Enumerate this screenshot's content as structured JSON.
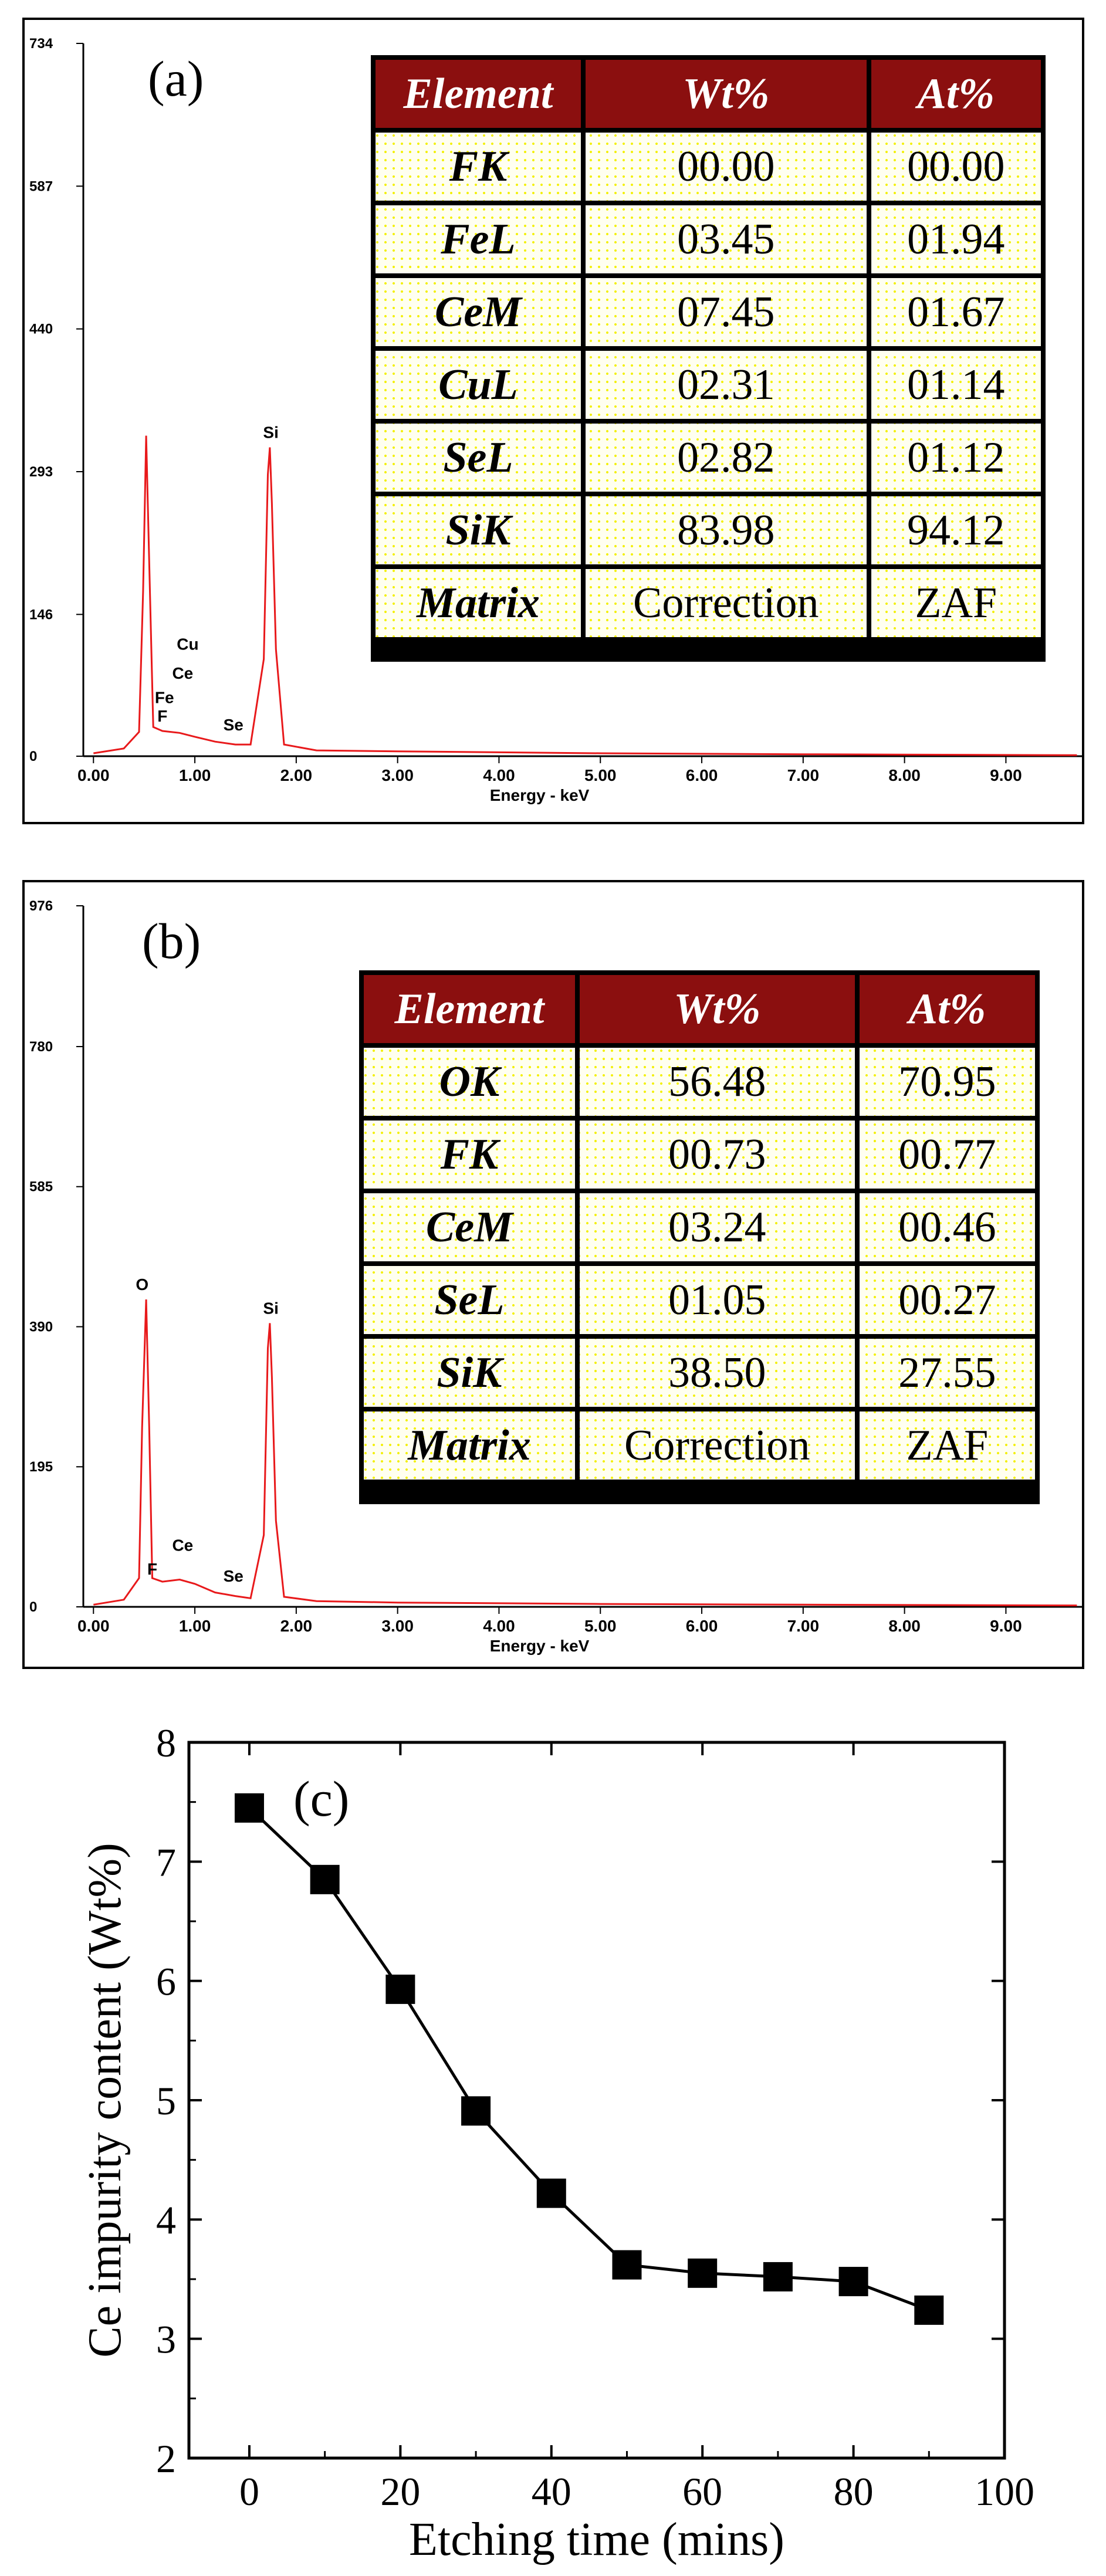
{
  "colors": {
    "spectrum": "#e8191b",
    "header_bg": "#8b0f0f",
    "table_dots": "#f3f000",
    "ce_line": "#000000"
  },
  "panels": [
    {
      "label": "(a)",
      "y_ticks": [
        "734",
        "587",
        "440",
        "293",
        "146",
        "0"
      ],
      "x_ticks": [
        "0.00",
        "1.00",
        "2.00",
        "3.00",
        "4.00",
        "5.00",
        "6.00",
        "7.00",
        "8.00",
        "9.00"
      ],
      "xlabel": "Energy - keV",
      "peak_labels": [
        "Si",
        "Cu",
        "Ce",
        "Fe",
        "F",
        "Se"
      ],
      "table": {
        "headers": [
          "Element",
          "Wt%",
          "At%"
        ],
        "rows": [
          [
            "FK",
            "00.00",
            "00.00"
          ],
          [
            "FeL",
            "03.45",
            "01.94"
          ],
          [
            "CeM",
            "07.45",
            "01.67"
          ],
          [
            "CuL",
            "02.31",
            "01.14"
          ],
          [
            "SeL",
            "02.82",
            "01.12"
          ],
          [
            "SiK",
            "83.98",
            "94.12"
          ],
          [
            "Matrix",
            "Correction",
            "ZAF"
          ]
        ]
      }
    },
    {
      "label": "(b)",
      "y_ticks": [
        "976",
        "780",
        "585",
        "390",
        "195",
        "0"
      ],
      "x_ticks": [
        "0.00",
        "1.00",
        "2.00",
        "3.00",
        "4.00",
        "5.00",
        "6.00",
        "7.00",
        "8.00",
        "9.00"
      ],
      "xlabel": "Energy - keV",
      "peak_labels": [
        "O",
        "Si",
        "Ce",
        "F",
        "Se"
      ],
      "table": {
        "headers": [
          "Element",
          "Wt%",
          "At%"
        ],
        "rows": [
          [
            "OK",
            "56.48",
            "70.95"
          ],
          [
            "FK",
            "00.73",
            "00.77"
          ],
          [
            "CeM",
            "03.24",
            "00.46"
          ],
          [
            "SeL",
            "01.05",
            "00.27"
          ],
          [
            "SiK",
            "38.50",
            "27.55"
          ],
          [
            "Matrix",
            "Correction",
            "ZAF"
          ]
        ]
      }
    }
  ],
  "chart_data": [
    {
      "type": "line",
      "label": "(a)",
      "xlabel": "Energy - keV",
      "ylabel": "",
      "xlim": [
        -0.1,
        9.75
      ],
      "ylim": [
        0,
        734
      ],
      "x_ticks": [
        0,
        1,
        2,
        3,
        4,
        5,
        6,
        7,
        8,
        9
      ],
      "y_ticks": [
        0,
        146,
        293,
        440,
        587,
        734
      ],
      "series": [
        {
          "x": [
            0.0,
            0.3,
            0.45,
            0.49,
            0.52,
            0.55,
            0.59,
            0.68,
            0.85,
            1.0,
            1.2,
            1.4,
            1.55,
            1.68,
            1.72,
            1.74,
            1.76,
            1.8,
            1.88,
            2.2,
            3.0,
            5.0,
            7.0,
            9.7
          ],
          "y": [
            3,
            8,
            25,
            170,
            330,
            200,
            30,
            26,
            24,
            20,
            15,
            12,
            12,
            100,
            290,
            318,
            260,
            110,
            12,
            6,
            5,
            3,
            2,
            1
          ]
        }
      ],
      "annotations": [
        {
          "text": "Si",
          "x": 1.75,
          "y": 318
        },
        {
          "text": "Cu",
          "x": 0.93,
          "y": 100
        },
        {
          "text": "Ce",
          "x": 0.88,
          "y": 70
        },
        {
          "text": "Fe",
          "x": 0.7,
          "y": 45
        },
        {
          "text": "F",
          "x": 0.68,
          "y": 26
        },
        {
          "text": "Se",
          "x": 1.38,
          "y": 17
        }
      ]
    },
    {
      "type": "line",
      "label": "(b)",
      "xlabel": "Energy - keV",
      "ylabel": "",
      "xlim": [
        -0.1,
        9.75
      ],
      "ylim": [
        0,
        976
      ],
      "x_ticks": [
        0,
        1,
        2,
        3,
        4,
        5,
        6,
        7,
        8,
        9
      ],
      "y_ticks": [
        0,
        195,
        390,
        585,
        780,
        976
      ],
      "series": [
        {
          "x": [
            0.0,
            0.3,
            0.45,
            0.48,
            0.52,
            0.55,
            0.58,
            0.68,
            0.85,
            1.0,
            1.2,
            1.4,
            1.55,
            1.68,
            1.72,
            1.74,
            1.76,
            1.8,
            1.88,
            2.2,
            3.0,
            5.0,
            7.0,
            9.7
          ],
          "y": [
            3,
            10,
            40,
            250,
            428,
            250,
            40,
            35,
            38,
            32,
            20,
            15,
            12,
            100,
            360,
            395,
            320,
            120,
            14,
            8,
            6,
            4,
            3,
            2
          ]
        }
      ],
      "annotations": [
        {
          "text": "O",
          "x": 0.48,
          "y": 428
        },
        {
          "text": "Si",
          "x": 1.75,
          "y": 395
        },
        {
          "text": "Ce",
          "x": 0.88,
          "y": 65
        },
        {
          "text": "F",
          "x": 0.58,
          "y": 32
        },
        {
          "text": "Se",
          "x": 1.38,
          "y": 22
        }
      ]
    },
    {
      "type": "line",
      "label": "(c)",
      "xlabel": "Etching time (mins)",
      "ylabel": "Ce impurity content (Wt%)",
      "xlim": [
        -8,
        100
      ],
      "ylim": [
        2,
        8
      ],
      "x_ticks": [
        0,
        20,
        40,
        60,
        80,
        100
      ],
      "y_ticks": [
        2,
        3,
        4,
        5,
        6,
        7,
        8
      ],
      "series": [
        {
          "x": [
            0,
            10,
            20,
            30,
            40,
            50,
            60,
            70,
            80,
            90
          ],
          "y": [
            7.45,
            6.85,
            5.93,
            4.91,
            4.22,
            3.62,
            3.55,
            3.52,
            3.48,
            3.24
          ]
        }
      ]
    }
  ]
}
